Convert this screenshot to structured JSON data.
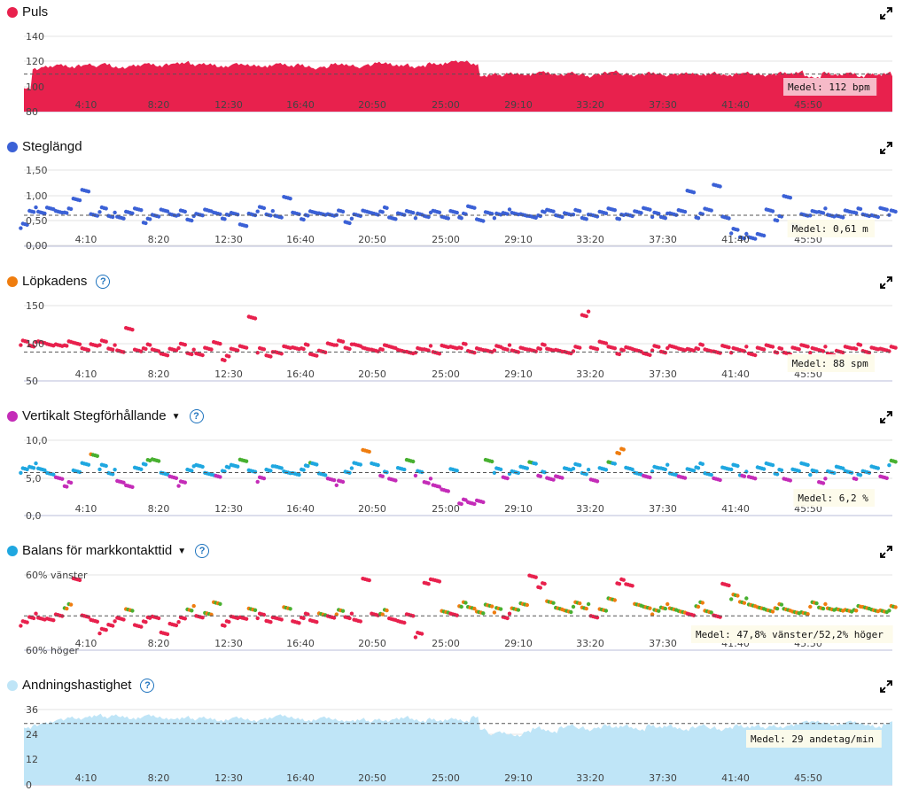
{
  "x_ticks": [
    "4:10",
    "8:20",
    "12:30",
    "16:40",
    "20:50",
    "25:00",
    "29:10",
    "33:20",
    "37:30",
    "41:40",
    "45:50"
  ],
  "panels": [
    {
      "key": "puls",
      "title": "Puls",
      "color": "#e8214d",
      "help": false,
      "caret": false,
      "y_ticks": [
        "140",
        "120",
        "100",
        "80"
      ],
      "mean_label": "Medel: 112 bpm",
      "chart_data": {
        "type": "area",
        "x_range": [
          0,
          50
        ],
        "ylim": [
          80,
          145
        ],
        "mean": 112,
        "series": [
          {
            "values": [
              100,
              116,
              118,
              119,
              120,
              118,
              119,
              120,
              119,
              121,
              118,
              117,
              119,
              120,
              121,
              119,
              120,
              121,
              122,
              120,
              121,
              120,
              118,
              119,
              121,
              120,
              119,
              118,
              120,
              121,
              119,
              120,
              118,
              117,
              118,
              121,
              120,
              119,
              118,
              120,
              122,
              121,
              119,
              120,
              118,
              119,
              121,
              120,
              122,
              123,
              123,
              120,
              110,
              112,
              111,
              113,
              112,
              111,
              113,
              114,
              112,
              111,
              113,
              112,
              110,
              112,
              113,
              114,
              112,
              111,
              112,
              113,
              112,
              111,
              112,
              113,
              112,
              111,
              113,
              112,
              111,
              112,
              113,
              112,
              111,
              112,
              113,
              112,
              114,
              110,
              109,
              113,
              111,
              112,
              113,
              110,
              112,
              111,
              113,
              110
            ]
          }
        ]
      }
    },
    {
      "key": "steg",
      "title": "Steglängd",
      "color": "#3b61d6",
      "help": false,
      "caret": false,
      "y_ticks": [
        "1,50",
        "1,00",
        "0,50",
        "0,00"
      ],
      "mean_label": "Medel: 0,61 m",
      "chart_data": {
        "type": "scatter",
        "x_range": [
          0,
          50
        ],
        "ylim": [
          0,
          1.5
        ],
        "mean": 0.61,
        "series": [
          {
            "values": [
              0.4,
              0.72,
              0.68,
              0.74,
              0.65,
              0.7,
              0.95,
              1.1,
              0.6,
              0.72,
              0.62,
              0.58,
              0.66,
              0.7,
              0.5,
              0.63,
              0.71,
              0.6,
              0.66,
              0.55,
              0.64,
              0.7,
              0.62,
              0.58,
              0.67,
              0.42,
              0.61,
              0.73,
              0.65,
              0.6,
              0.95,
              0.62,
              0.57,
              0.7,
              0.64,
              0.6,
              0.66,
              0.5,
              0.63,
              0.68,
              0.61,
              0.72,
              0.58,
              0.64,
              0.66,
              0.6,
              0.62,
              0.7,
              0.56,
              0.65,
              0.6,
              0.8,
              0.52,
              0.64,
              0.6,
              0.68,
              0.66,
              0.61,
              0.55,
              0.64,
              0.73,
              0.6,
              0.62,
              0.67,
              0.58,
              0.62,
              0.66,
              0.7,
              0.58,
              0.64,
              0.68,
              0.72,
              0.62,
              0.6,
              0.65,
              0.69,
              1.05,
              0.6,
              0.75,
              1.2,
              0.55,
              0.3,
              0.2,
              0.18,
              0.22,
              0.68,
              0.55,
              1.0,
              0.42,
              0.6,
              0.65,
              0.7,
              0.62,
              0.58,
              0.66,
              0.7,
              0.64,
              0.6,
              0.72,
              0.66
            ]
          }
        ]
      }
    },
    {
      "key": "kadens",
      "title": "Löpkadens",
      "color": "#ef7d0f",
      "help": true,
      "caret": false,
      "y_ticks": [
        "150",
        "100",
        "50"
      ],
      "mean_label": "Medel: 88 spm",
      "chart_data": {
        "type": "scatter",
        "x_range": [
          0,
          50
        ],
        "ylim": [
          50,
          150
        ],
        "mean": 88,
        "point_color": "#e8214d",
        "series": [
          {
            "values": [
              100,
              98,
              102,
              97,
              95,
              99,
              101,
              92,
              96,
              100,
              94,
              90,
              118,
              88,
              95,
              92,
              85,
              90,
              96,
              88,
              86,
              92,
              98,
              80,
              93,
              95,
              132,
              90,
              85,
              88,
              94,
              91,
              95,
              86,
              89,
              97,
              100,
              95,
              98,
              92,
              88,
              94,
              96,
              90,
              86,
              90,
              93,
              88,
              95,
              92,
              96,
              90,
              92,
              88,
              93,
              94,
              90,
              92,
              88,
              95,
              93,
              90,
              86,
              92,
              138,
              94,
              100,
              92,
              88,
              95,
              90,
              84,
              93,
              90,
              96,
              91,
              89,
              95,
              92,
              88,
              94,
              90,
              92,
              86,
              92,
              94,
              90,
              88,
              93,
              95,
              90,
              92,
              86,
              88,
              92,
              95,
              90,
              93,
              90,
              92
            ]
          }
        ]
      }
    },
    {
      "key": "vertikalt",
      "title": "Vertikalt Stegförhållande",
      "color": "#c42cb8",
      "help": true,
      "caret": true,
      "y_ticks": [
        "10,0",
        "5,0",
        "0,0"
      ],
      "mean_label": "Medel: 6,2 %",
      "chart_data": {
        "type": "scatter",
        "x_range": [
          0,
          50
        ],
        "ylim": [
          0,
          11
        ],
        "mean": 6.2,
        "series": [
          {
            "values": [
              6.5,
              7.2,
              6.8,
              6.0,
              5.2,
              4.5,
              6.6,
              7.5,
              8.6,
              7.0,
              6.3,
              5.0,
              4.2,
              6.6,
              7.7,
              8.2,
              6.1,
              5.4,
              4.6,
              6.8,
              7.3,
              6.0,
              5.5,
              6.7,
              7.4,
              8.0,
              6.3,
              5.2,
              6.8,
              7.1,
              6.2,
              5.8,
              6.9,
              7.7,
              6.0,
              5.1,
              4.7,
              6.5,
              7.6,
              9.3,
              7.2,
              6.0,
              5.4,
              6.8,
              7.8,
              6.1,
              5.0,
              4.4,
              3.6,
              6.4,
              2.0,
              2.0,
              2.1,
              7.8,
              6.5,
              5.7,
              6.4,
              6.9,
              7.4,
              6.0,
              5.5,
              5.6,
              6.6,
              7.1,
              6.3,
              5.2,
              6.7,
              7.4,
              9.3,
              7.0,
              6.1,
              5.5,
              6.7,
              7.0,
              6.1,
              5.5,
              6.4,
              7.2,
              6.2,
              5.3,
              6.7,
              7.0,
              6.0,
              5.6,
              6.8,
              7.2,
              6.3,
              5.4,
              6.6,
              7.3,
              6.2,
              5.0,
              6.4,
              6.9,
              6.1,
              5.6,
              6.5,
              7.0,
              5.4,
              7.6
            ]
          }
        ]
      }
    },
    {
      "key": "balans",
      "title": "Balans för markkontakttid",
      "color": "#1fa7e0",
      "help": true,
      "caret": true,
      "y_ticks": [
        "60% vänster",
        "60% höger"
      ],
      "mean_label": "Medel: 47,8% vänster/52,2% höger",
      "chart_data": {
        "type": "scatter",
        "x_range": [
          0,
          50
        ],
        "ylim": [
          -1,
          1
        ],
        "mean": -0.1,
        "series": [
          {
            "values": [
              -0.3,
              -0.1,
              -0.15,
              -0.2,
              -0.12,
              0.15,
              0.9,
              -0.1,
              -0.25,
              -0.5,
              -0.3,
              -0.15,
              0.05,
              -0.4,
              -0.2,
              -0.1,
              -0.55,
              -0.35,
              -0.2,
              0.1,
              -0.1,
              -0.05,
              0.2,
              -0.3,
              -0.1,
              -0.15,
              0.05,
              -0.1,
              -0.2,
              -0.15,
              0.1,
              -0.3,
              -0.1,
              -0.2,
              -0.05,
              -0.15,
              0.0,
              -0.1,
              -0.2,
              0.85,
              -0.1,
              0.0,
              -0.15,
              -0.25,
              -0.1,
              -0.6,
              0.8,
              0.85,
              0.0,
              -0.1,
              0.2,
              0.15,
              0.0,
              0.15,
              0.05,
              -0.1,
              0.1,
              0.2,
              0.9,
              0.7,
              0.3,
              0.1,
              0.0,
              0.2,
              0.15,
              -0.1,
              0.05,
              0.3,
              0.8,
              0.75,
              0.2,
              0.1,
              0.0,
              0.15,
              0.1,
              0.0,
              -0.1,
              0.2,
              0.05,
              -0.1,
              0.7,
              0.4,
              0.3,
              0.2,
              0.1,
              0.0,
              0.15,
              0.1,
              0.0,
              -0.05,
              0.2,
              0.15,
              0.1,
              0.05,
              0.0,
              0.1,
              0.15,
              0.05,
              0.0,
              0.1
            ]
          }
        ]
      }
    },
    {
      "key": "andning",
      "title": "Andningshastighet",
      "color": "#bfe5f7",
      "help": true,
      "caret": false,
      "y_ticks": [
        "36",
        "24",
        "12",
        "0"
      ],
      "mean_label": "Medel: 29 andetag/min",
      "chart_data": {
        "type": "area",
        "x_range": [
          0,
          50
        ],
        "ylim": [
          0,
          36
        ],
        "mean": 29,
        "series": [
          {
            "values": [
              27,
              28,
              29,
              30,
              31,
              32,
              31,
              32,
              33,
              32,
              33,
              32,
              31,
              32,
              33,
              32,
              31,
              31,
              32,
              31,
              32,
              31,
              30,
              31,
              32,
              31,
              30,
              31,
              32,
              33,
              32,
              31,
              30,
              31,
              32,
              31,
              30,
              30,
              31,
              30,
              31,
              30,
              31,
              32,
              31,
              30,
              31,
              30,
              31,
              31,
              30,
              32,
              26,
              24,
              25,
              24,
              23,
              25,
              27,
              26,
              25,
              27,
              28,
              27,
              26,
              27,
              28,
              27,
              28,
              27,
              26,
              28,
              27,
              28,
              27,
              26,
              27,
              28,
              27,
              26,
              27,
              28,
              27,
              28,
              27,
              28,
              27,
              28,
              29,
              30,
              30,
              29,
              28,
              29,
              30,
              29,
              28,
              27,
              29,
              30
            ]
          }
        ]
      }
    }
  ]
}
